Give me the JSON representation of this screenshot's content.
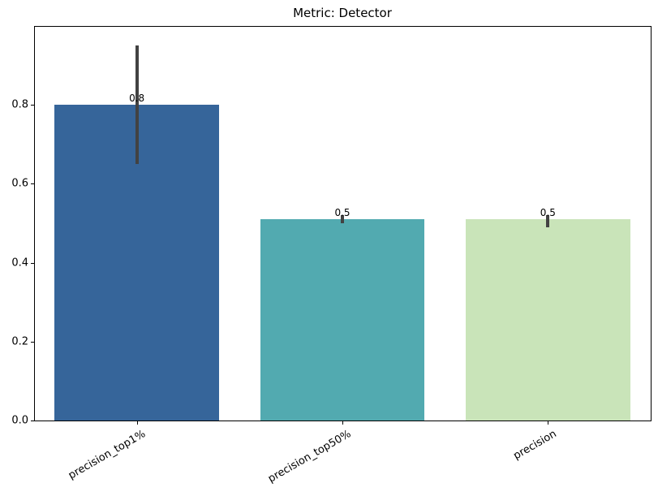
{
  "chart_data": {
    "type": "bar",
    "title": "Metric: Detector",
    "categories": [
      "precision_top1%",
      "precision_top50%",
      "precision"
    ],
    "values": [
      0.8,
      0.51,
      0.51
    ],
    "value_labels": [
      "0.8",
      "0.5",
      "0.5"
    ],
    "ci": [
      [
        0.65,
        0.95
      ],
      [
        0.5,
        0.52
      ],
      [
        0.49,
        0.52
      ]
    ],
    "bar_colors": [
      "#36659a",
      "#52aab0",
      "#c9e4b9"
    ],
    "error_color": "#424242",
    "xlabel": "",
    "ylabel": "",
    "ylim": [
      0,
      1.0
    ],
    "yticks": [
      0.0,
      0.2,
      0.4,
      0.6,
      0.8
    ],
    "ytick_labels": [
      "0.0",
      "0.2",
      "0.4",
      "0.6",
      "0.8"
    ],
    "xtick_rotation": 30,
    "bar_width_fraction": 0.8,
    "grid": false,
    "legend": null
  }
}
